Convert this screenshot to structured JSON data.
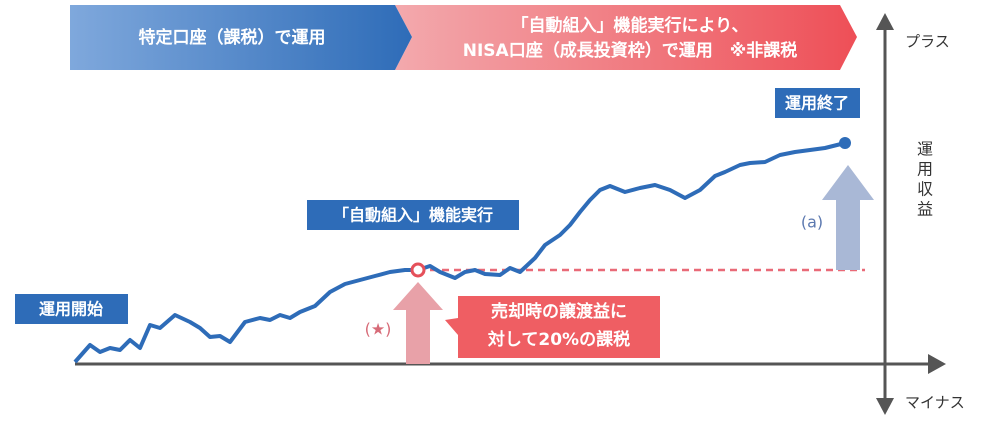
{
  "banner": {
    "left": "特定口座（課税）で運用",
    "right_line1": "「自動組入」機能実行により、",
    "right_line2": "NISA口座（成長投資枠）で運用　※非課税"
  },
  "labels": {
    "end": "運用終了",
    "auto": "「自動組入」機能実行",
    "start": "運用開始",
    "tax_line1": "売却時の譲渡益に",
    "tax_line2": "対して20%の課税",
    "star": "(★)",
    "a": "(a)"
  },
  "axis": {
    "plus": "プラス",
    "profit": [
      "運",
      "用",
      "収",
      "益"
    ],
    "minus": "マイナス"
  }
}
